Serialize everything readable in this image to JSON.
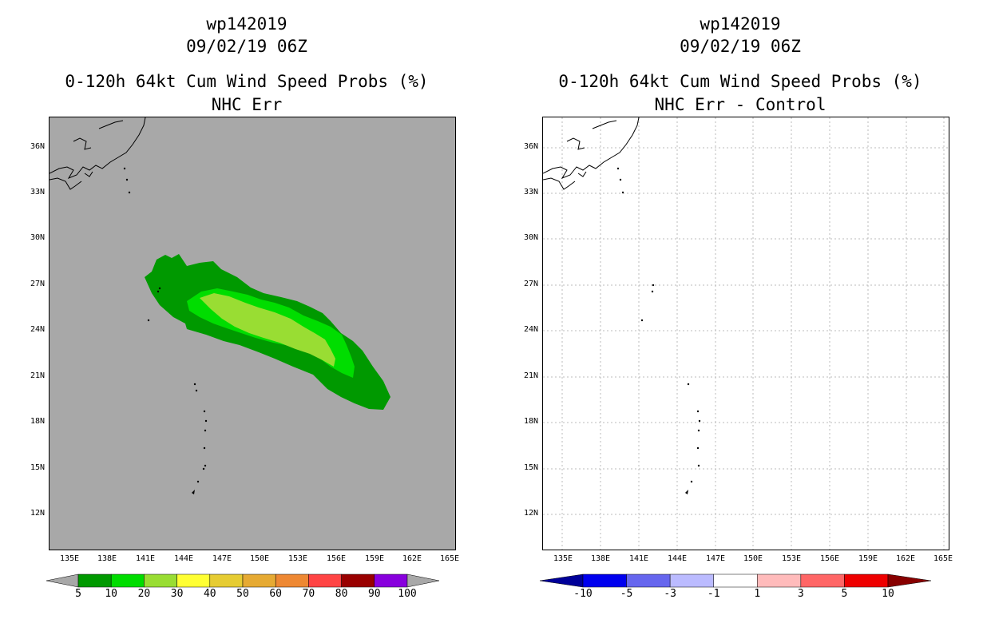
{
  "left": {
    "storm_id": "wp142019",
    "datetime": "09/02/19 06Z",
    "product": "0-120h 64kt Cum Wind Speed Probs (%)",
    "subtitle": "NHC Err",
    "colorbar": {
      "labels": [
        "5",
        "10",
        "20",
        "30",
        "40",
        "50",
        "60",
        "70",
        "80",
        "90",
        "100"
      ],
      "colors": [
        "#a8a8a8",
        "#009900",
        "#00dd00",
        "#99dd33",
        "#ffff33",
        "#e6cc33",
        "#e6aa33",
        "#ee8833",
        "#ff4444",
        "#990000",
        "#8800dd",
        "#a8a8a8"
      ]
    }
  },
  "right": {
    "storm_id": "wp142019",
    "datetime": "09/02/19 06Z",
    "product": "0-120h 64kt Cum Wind Speed Probs (%)",
    "subtitle": "NHC Err - Control",
    "colorbar": {
      "labels": [
        "-10",
        "-5",
        "-3",
        "-1",
        "1",
        "3",
        "5",
        "10"
      ],
      "colors": [
        "#000099",
        "#0000ee",
        "#6666ee",
        "#bbbbff",
        "#ffffff",
        "#ffbbbb",
        "#ff6666",
        "#ee0000",
        "#880000"
      ]
    }
  },
  "map": {
    "lat_labels": [
      "36N",
      "33N",
      "30N",
      "27N",
      "24N",
      "21N",
      "18N",
      "15N",
      "12N"
    ],
    "lon_labels": [
      "135E",
      "138E",
      "141E",
      "144E",
      "147E",
      "150E",
      "153E",
      "156E",
      "159E",
      "162E",
      "165E"
    ],
    "background_color": "#a8a8a8",
    "prob_colors": {
      "p5": "#009900",
      "p10": "#00dd00",
      "p20": "#99dd33"
    }
  }
}
